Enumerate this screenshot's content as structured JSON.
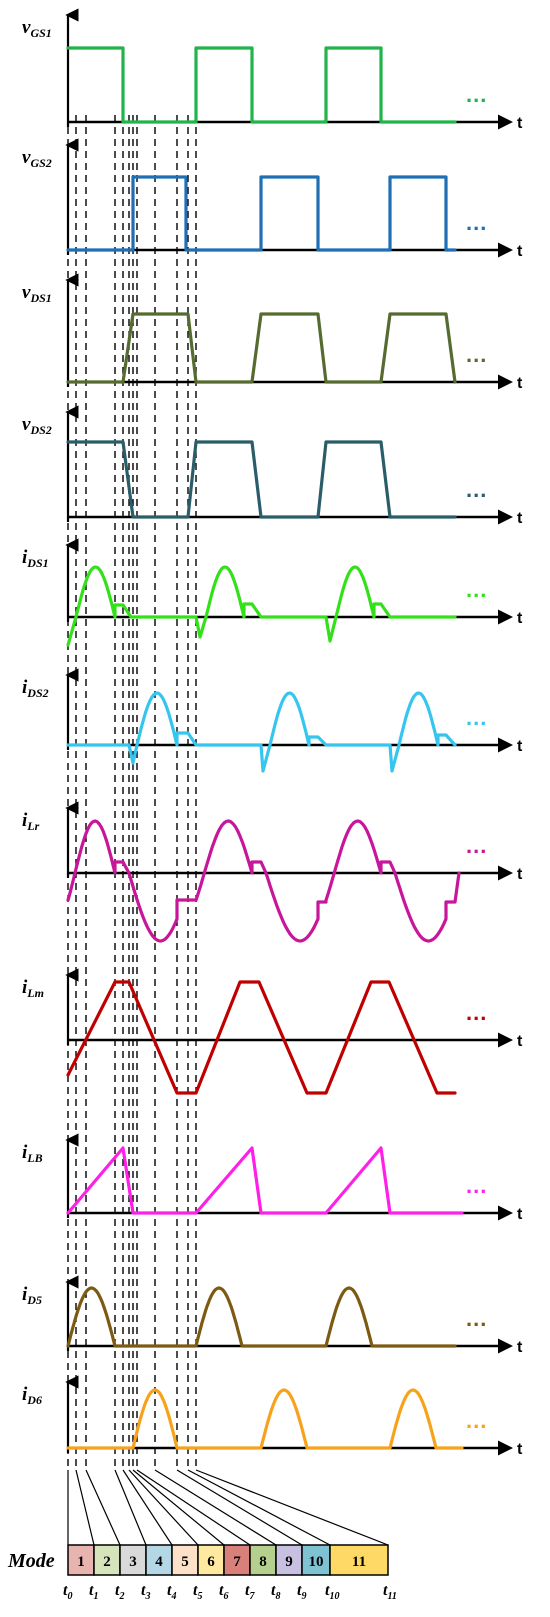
{
  "panels": [
    {
      "id": "vgs1",
      "label": "v",
      "sub": "GS1",
      "color": "#22b34a",
      "axis": "t",
      "ellipsis": "..."
    },
    {
      "id": "vgs2",
      "label": "v",
      "sub": "GS2",
      "color": "#1f6fb5",
      "axis": "t",
      "ellipsis": "..."
    },
    {
      "id": "vds1",
      "label": "v",
      "sub": "DS1",
      "color": "#556b2f",
      "axis": "t",
      "ellipsis": "..."
    },
    {
      "id": "vds2",
      "label": "v",
      "sub": "DS2",
      "color": "#2a5d6a",
      "axis": "t",
      "ellipsis": "..."
    },
    {
      "id": "ids1",
      "label": "i",
      "sub": "DS1",
      "color": "#33e01a",
      "axis": "t",
      "ellipsis": "..."
    },
    {
      "id": "ids2",
      "label": "i",
      "sub": "DS2",
      "color": "#36c5ee",
      "axis": "t",
      "ellipsis": "..."
    },
    {
      "id": "ilr",
      "label": "i",
      "sub": "Lr",
      "color": "#c8169a",
      "axis": "t",
      "ellipsis": "..."
    },
    {
      "id": "ilm",
      "label": "i",
      "sub": "Lm",
      "color": "#c00000",
      "axis": "t",
      "ellipsis": "..."
    },
    {
      "id": "ilb",
      "label": "i",
      "sub": "LB",
      "color": "#ff20e8",
      "axis": "t",
      "ellipsis": "..."
    },
    {
      "id": "id5",
      "label": "i",
      "sub": "D5",
      "color": "#7d5a12",
      "axis": "t",
      "ellipsis": "..."
    },
    {
      "id": "id6",
      "label": "i",
      "sub": "D6",
      "color": "#f7a21b",
      "axis": "t",
      "ellipsis": "..."
    }
  ],
  "mode_table": {
    "title": "Mode",
    "modes": [
      {
        "num": "1",
        "color": "#e8b4b0"
      },
      {
        "num": "2",
        "color": "#d6e4bc"
      },
      {
        "num": "3",
        "color": "#d9d9d9"
      },
      {
        "num": "4",
        "color": "#b4d7e6"
      },
      {
        "num": "5",
        "color": "#fce0c8"
      },
      {
        "num": "6",
        "color": "#ffe9a0"
      },
      {
        "num": "7",
        "color": "#d9807a"
      },
      {
        "num": "8",
        "color": "#b5cf8e"
      },
      {
        "num": "9",
        "color": "#c8c0e0"
      },
      {
        "num": "10",
        "color": "#7fc3d3"
      },
      {
        "num": "11",
        "color": "#ffd966"
      }
    ],
    "time_labels": [
      {
        "main": "t",
        "sub": "0"
      },
      {
        "main": "t",
        "sub": "1"
      },
      {
        "main": "t",
        "sub": "2"
      },
      {
        "main": "t",
        "sub": "3"
      },
      {
        "main": "t",
        "sub": "4"
      },
      {
        "main": "t",
        "sub": "5"
      },
      {
        "main": "t",
        "sub": "6"
      },
      {
        "main": "t",
        "sub": "7"
      },
      {
        "main": "t",
        "sub": "8"
      },
      {
        "main": "t",
        "sub": "9"
      },
      {
        "main": "t",
        "sub": "10"
      },
      {
        "main": "t",
        "sub": "11"
      }
    ]
  }
}
